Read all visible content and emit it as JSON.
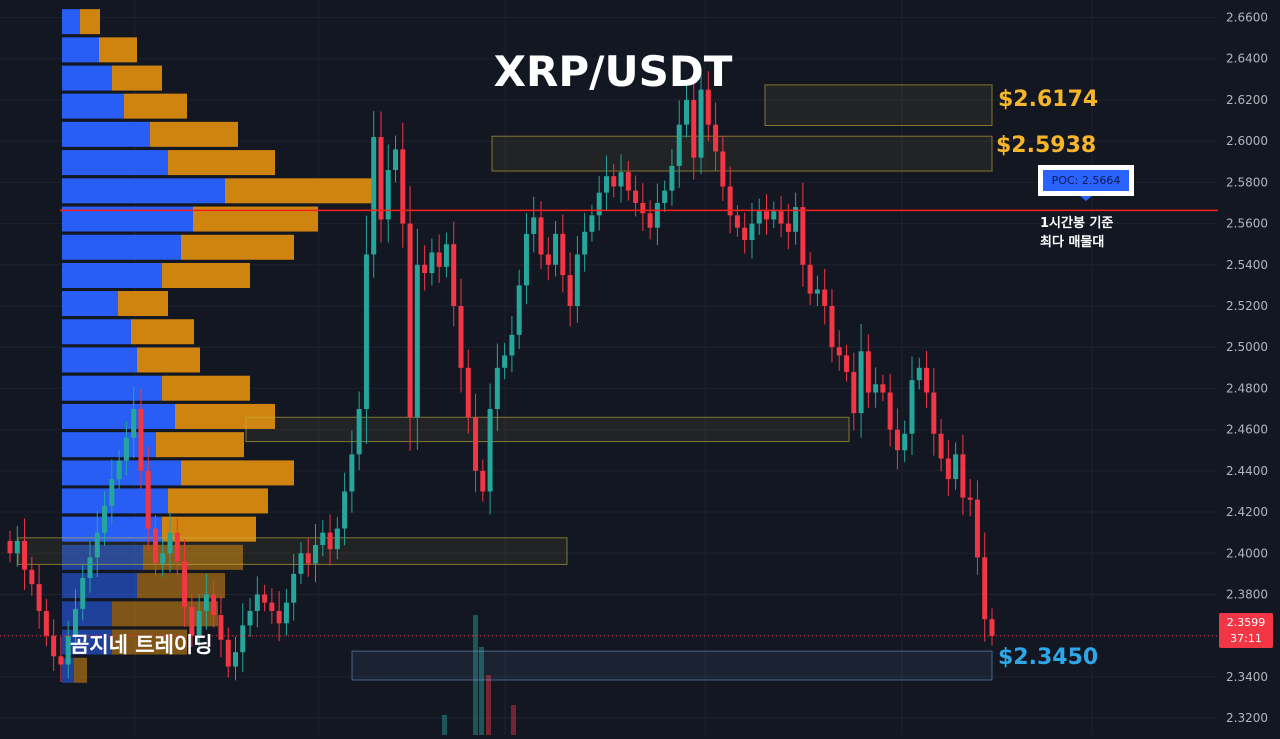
{
  "chart_data": {
    "type": "candlestick",
    "title": "XRP/USDT",
    "watermark": "곰지네 트레이딩",
    "y_axis": {
      "range": [
        2.3118,
        2.6685
      ],
      "ticks": [
        "2.3200",
        "2.3400",
        "2.3600",
        "2.3800",
        "2.4000",
        "2.4200",
        "2.4400",
        "2.4600",
        "2.4800",
        "2.5000",
        "2.5200",
        "2.5400",
        "2.5600",
        "2.5800",
        "2.6000",
        "2.6200",
        "2.6400",
        "2.6600"
      ],
      "position": "right"
    },
    "last_price": {
      "value": "2.3599",
      "countdown": "37:11",
      "color": "#f23645"
    },
    "poc": {
      "label": "POC: 2.5664",
      "value": 2.5664,
      "line_color": "#ff1f1f",
      "note_line1": "1시간봉 기준",
      "note_line2": "최다 매물대"
    },
    "zone_labels": [
      {
        "text": "$2.6174",
        "value": 2.6174,
        "color": "#f7b529"
      },
      {
        "text": "$2.5938",
        "value": 2.5938,
        "color": "#f7b529"
      },
      {
        "text": "$2.3450",
        "value": 2.345,
        "color": "#2ea7e8"
      }
    ],
    "zones": [
      {
        "top": 2.6273,
        "bottom": 2.6076,
        "x_start": 765,
        "x_end": 992,
        "kind": "resistance"
      },
      {
        "top": 2.6024,
        "bottom": 2.5855,
        "x_start": 492,
        "x_end": 992,
        "kind": "resistance"
      },
      {
        "top": 2.466,
        "bottom": 2.4542,
        "x_start": 246,
        "x_end": 849,
        "kind": "resistance"
      },
      {
        "top": 2.4075,
        "bottom": 2.3946,
        "x_start": 18,
        "x_end": 567,
        "kind": "resistance"
      },
      {
        "top": 2.3525,
        "bottom": 2.3385,
        "x_start": 352,
        "x_end": 992,
        "kind": "support"
      }
    ],
    "volume_profile": {
      "colors": {
        "buy": "#2962ff",
        "sell": "#d98a0f"
      },
      "rows": [
        {
          "price": 2.658,
          "buy": 18,
          "sell": 20
        },
        {
          "price": 2.6443,
          "buy": 37,
          "sell": 38
        },
        {
          "price": 2.6306,
          "buy": 50,
          "sell": 50
        },
        {
          "price": 2.617,
          "buy": 62,
          "sell": 63
        },
        {
          "price": 2.6033,
          "buy": 88,
          "sell": 88
        },
        {
          "price": 2.5896,
          "buy": 106,
          "sell": 107
        },
        {
          "price": 2.5759,
          "buy": 163,
          "sell": 150
        },
        {
          "price": 2.5622,
          "buy": 131,
          "sell": 125
        },
        {
          "price": 2.5485,
          "buy": 119,
          "sell": 113
        },
        {
          "price": 2.5348,
          "buy": 100,
          "sell": 88
        },
        {
          "price": 2.5212,
          "buy": 56,
          "sell": 50
        },
        {
          "price": 2.5075,
          "buy": 69,
          "sell": 63
        },
        {
          "price": 2.4938,
          "buy": 75,
          "sell": 63
        },
        {
          "price": 2.4801,
          "buy": 100,
          "sell": 88
        },
        {
          "price": 2.4664,
          "buy": 113,
          "sell": 100
        },
        {
          "price": 2.4527,
          "buy": 94,
          "sell": 88
        },
        {
          "price": 2.439,
          "buy": 119,
          "sell": 113
        },
        {
          "price": 2.4254,
          "buy": 106,
          "sell": 100
        },
        {
          "price": 2.4117,
          "buy": 100,
          "sell": 94
        },
        {
          "price": 2.398,
          "buy": 81,
          "sell": 100
        },
        {
          "price": 2.3843,
          "buy": 75,
          "sell": 88
        },
        {
          "price": 2.3706,
          "buy": 50,
          "sell": 106
        },
        {
          "price": 2.3569,
          "buy": 50,
          "sell": 75
        },
        {
          "price": 2.3432,
          "buy": 12,
          "sell": 13
        }
      ]
    },
    "candle_colors": {
      "up": "#26a69a",
      "down": "#f23645"
    },
    "closes": [
      2.4,
      2.406,
      2.392,
      2.385,
      2.372,
      2.36,
      2.35,
      2.346,
      2.36,
      2.373,
      2.388,
      2.398,
      2.41,
      2.423,
      2.436,
      2.445,
      2.456,
      2.47,
      2.44,
      2.412,
      2.395,
      2.4,
      2.41,
      2.396,
      2.374,
      2.36,
      2.372,
      2.38,
      2.37,
      2.358,
      2.345,
      2.352,
      2.365,
      2.372,
      2.38,
      2.376,
      2.372,
      2.366,
      2.376,
      2.39,
      2.4,
      2.395,
      2.404,
      2.41,
      2.402,
      2.412,
      2.43,
      2.448,
      2.47,
      2.545,
      2.602,
      2.562,
      2.586,
      2.596,
      2.56,
      2.466,
      2.54,
      2.536,
      2.546,
      2.539,
      2.55,
      2.52,
      2.49,
      2.466,
      2.44,
      2.43,
      2.47,
      2.49,
      2.496,
      2.506,
      2.53,
      2.555,
      2.563,
      2.545,
      2.54,
      2.555,
      2.535,
      2.52,
      2.545,
      2.556,
      2.564,
      2.575,
      2.583,
      2.578,
      2.585,
      2.576,
      2.57,
      2.565,
      2.558,
      2.57,
      2.576,
      2.588,
      2.608,
      2.62,
      2.592,
      2.625,
      2.608,
      2.595,
      2.578,
      2.564,
      2.558,
      2.552,
      2.56,
      2.566,
      2.562,
      2.566,
      2.56,
      2.556,
      2.568,
      2.54,
      2.526,
      2.528,
      2.52,
      2.5,
      2.496,
      2.488,
      2.468,
      2.498,
      2.478,
      2.482,
      2.478,
      2.46,
      2.45,
      2.458,
      2.484,
      2.49,
      2.478,
      2.458,
      2.446,
      2.436,
      2.448,
      2.427,
      2.426,
      2.398,
      2.368,
      2.3599
    ]
  }
}
